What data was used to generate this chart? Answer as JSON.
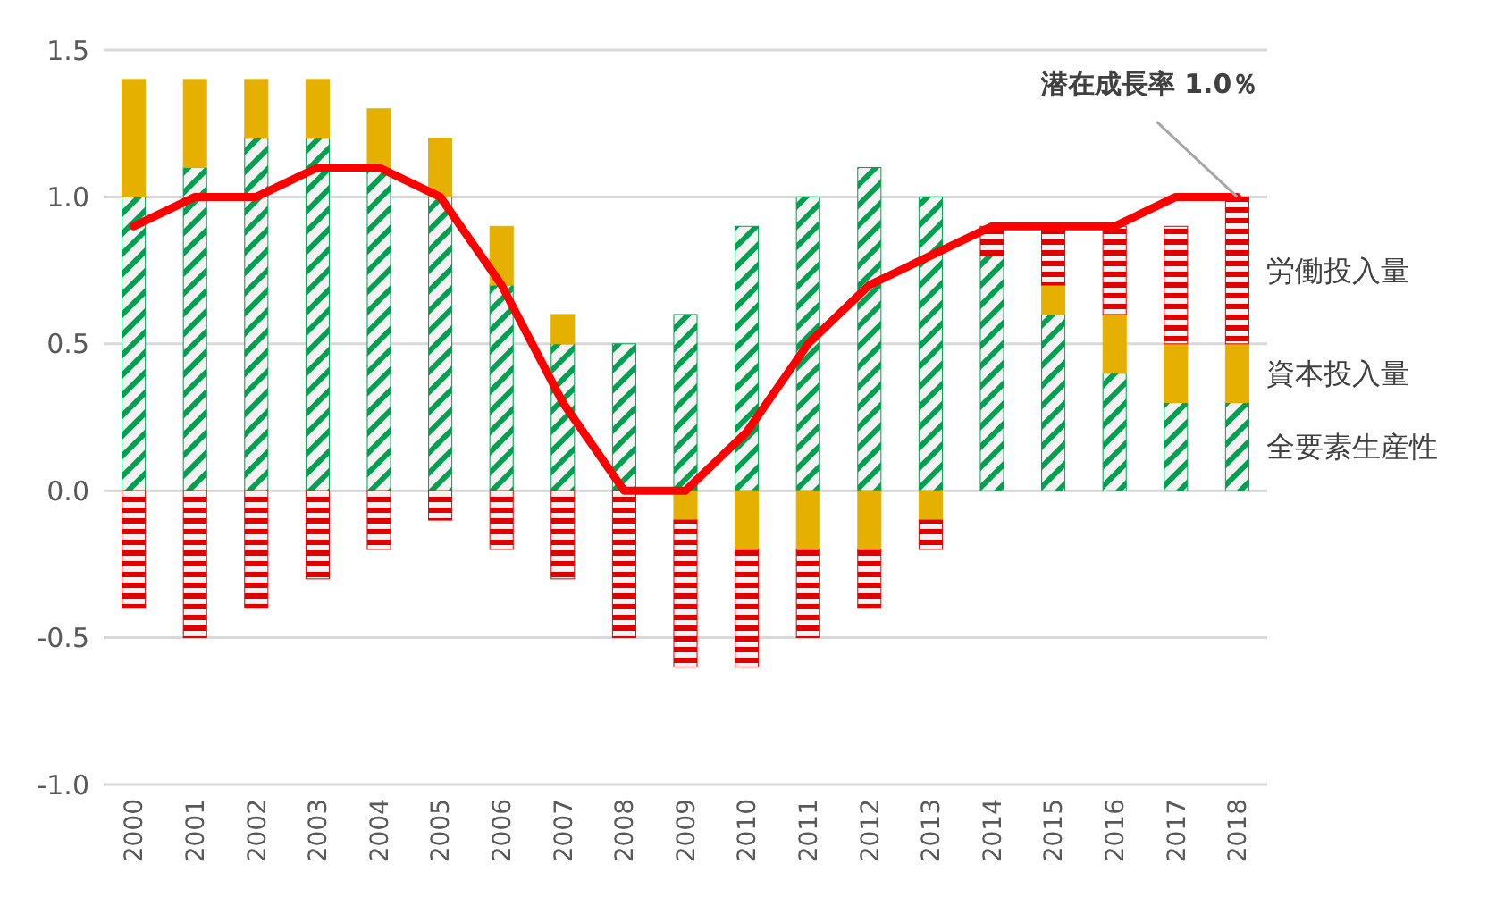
{
  "chart_data": {
    "type": "bar",
    "stacked": true,
    "categories": [
      "2000",
      "2001",
      "2002",
      "2003",
      "2004",
      "2005",
      "2006",
      "2007",
      "2008",
      "2009",
      "2010",
      "2011",
      "2012",
      "2013",
      "2014",
      "2015",
      "2016",
      "2017",
      "2018"
    ],
    "series": [
      {
        "name": "全要素生産性",
        "color": "#00a050",
        "values": [
          1.0,
          1.1,
          1.2,
          1.2,
          1.1,
          1.0,
          0.7,
          0.5,
          0.5,
          0.6,
          0.9,
          1.0,
          1.1,
          1.0,
          0.8,
          0.6,
          0.4,
          0.3,
          0.3
        ]
      },
      {
        "name": "資本投入量",
        "color": "#e6b000",
        "values": [
          0.4,
          0.3,
          0.2,
          0.2,
          0.2,
          0.2,
          0.2,
          0.1,
          0.0,
          -0.1,
          -0.2,
          -0.2,
          -0.2,
          -0.1,
          0.0,
          0.1,
          0.2,
          0.2,
          0.2
        ]
      },
      {
        "name": "労働投入量",
        "color": "#e00000",
        "values": [
          -0.4,
          -0.5,
          -0.4,
          -0.3,
          -0.2,
          -0.1,
          -0.2,
          -0.3,
          -0.5,
          -0.5,
          -0.4,
          -0.3,
          -0.2,
          -0.1,
          0.1,
          0.2,
          0.3,
          0.4,
          0.5
        ]
      },
      {
        "type": "line",
        "color": "#ff0000",
        "values": [
          0.9,
          1.0,
          1.0,
          1.1,
          1.1,
          1.0,
          0.7,
          0.3,
          0.0,
          0.0,
          0.2,
          0.5,
          0.7,
          0.8,
          0.9,
          0.9,
          0.9,
          1.0,
          1.0
        ]
      }
    ],
    "ylim": [
      -1.0,
      1.5
    ],
    "yticks": [
      {
        "value": -1.0,
        "label": "-1.0"
      },
      {
        "value": -0.5,
        "label": "-0.5"
      },
      {
        "value": 0,
        "label": "0.0"
      },
      {
        "value": 0.5,
        "label": "0.5"
      },
      {
        "value": 1.0,
        "label": "1.0"
      },
      {
        "value": 1.5,
        "label": "1.5"
      }
    ],
    "grid": "y",
    "annotations": [
      {
        "text": "潜在成長率 1.0％",
        "x": "2018",
        "y": 1.0
      }
    ]
  }
}
